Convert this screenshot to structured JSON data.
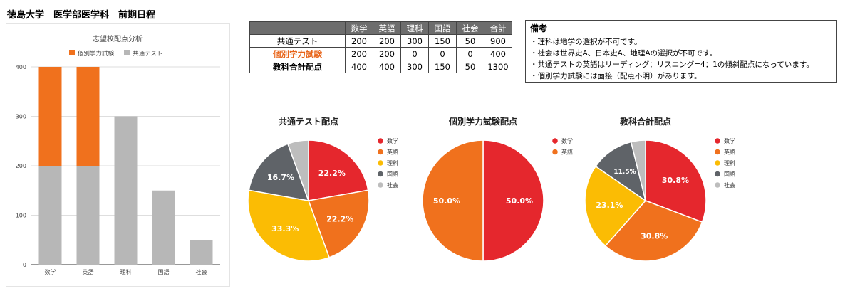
{
  "page": {
    "title": "徳島大学　医学部医学科　前期日程"
  },
  "colors": {
    "red": "#e5272d",
    "orange": "#f0711d",
    "yellow": "#fbbc04",
    "darkgray": "#5f6368",
    "lightgray": "#bdbdbd",
    "bar_gray": "#b7b7b7"
  },
  "table": {
    "headers": [
      "",
      "数学",
      "英語",
      "理科",
      "国語",
      "社会",
      "合計"
    ],
    "rows": [
      {
        "label": "共通テスト",
        "values": [
          "200",
          "200",
          "300",
          "150",
          "50",
          "900"
        ]
      },
      {
        "label": "個別学力試験",
        "values": [
          "200",
          "200",
          "0",
          "0",
          "0",
          "400"
        ]
      },
      {
        "label": "教科合計配点",
        "values": [
          "400",
          "400",
          "300",
          "150",
          "50",
          "1300"
        ]
      }
    ]
  },
  "notes": {
    "title": "備考",
    "lines": [
      "・理科は地学の選択が不可です。",
      "・社会は世界史A、日本史A、地理Aの選択が不可です。",
      "・共通テストの英語はリーディング：リスニング=4：1の傾斜配点になっています。",
      "・個別学力試験には面接（配点不明）があります。"
    ]
  },
  "chart_data": [
    {
      "type": "bar",
      "stacked": true,
      "title": "志望校配点分析",
      "categories": [
        "数学",
        "英語",
        "理科",
        "国語",
        "社会"
      ],
      "series": [
        {
          "name": "共通テスト",
          "values": [
            200,
            200,
            300,
            150,
            50
          ],
          "color": "#b7b7b7"
        },
        {
          "name": "個別学力試験",
          "values": [
            200,
            200,
            0,
            0,
            0
          ],
          "color": "#f0711d"
        }
      ],
      "legend": [
        "個別学力試験",
        "共通テスト"
      ],
      "ylim": [
        0,
        400
      ],
      "yticks": [
        0,
        100,
        200,
        300,
        400
      ],
      "legend_position": "top"
    },
    {
      "type": "pie",
      "title": "共通テスト配点",
      "labels": [
        "数学",
        "英語",
        "理科",
        "国語",
        "社会"
      ],
      "values": [
        200,
        200,
        300,
        150,
        50
      ],
      "colors": [
        "#e5272d",
        "#f0711d",
        "#fbbc04",
        "#5f6368",
        "#bdbdbd"
      ],
      "slice_labels": [
        "22.2%",
        "22.2%",
        "33.3%",
        "16.7%",
        ""
      ],
      "legend_position": "right"
    },
    {
      "type": "pie",
      "title": "個別学力試験配点",
      "labels": [
        "数学",
        "英語"
      ],
      "values": [
        200,
        200
      ],
      "colors": [
        "#e5272d",
        "#f0711d"
      ],
      "slice_labels": [
        "50.0%",
        "50.0%"
      ],
      "legend_position": "right"
    },
    {
      "type": "pie",
      "title": "教科合計配点",
      "labels": [
        "数学",
        "英語",
        "理科",
        "国語",
        "社会"
      ],
      "values": [
        400,
        400,
        300,
        150,
        50
      ],
      "colors": [
        "#e5272d",
        "#f0711d",
        "#fbbc04",
        "#5f6368",
        "#bdbdbd"
      ],
      "slice_labels": [
        "30.8%",
        "30.8%",
        "23.1%",
        "11.5%",
        ""
      ],
      "legend_position": "right"
    }
  ]
}
